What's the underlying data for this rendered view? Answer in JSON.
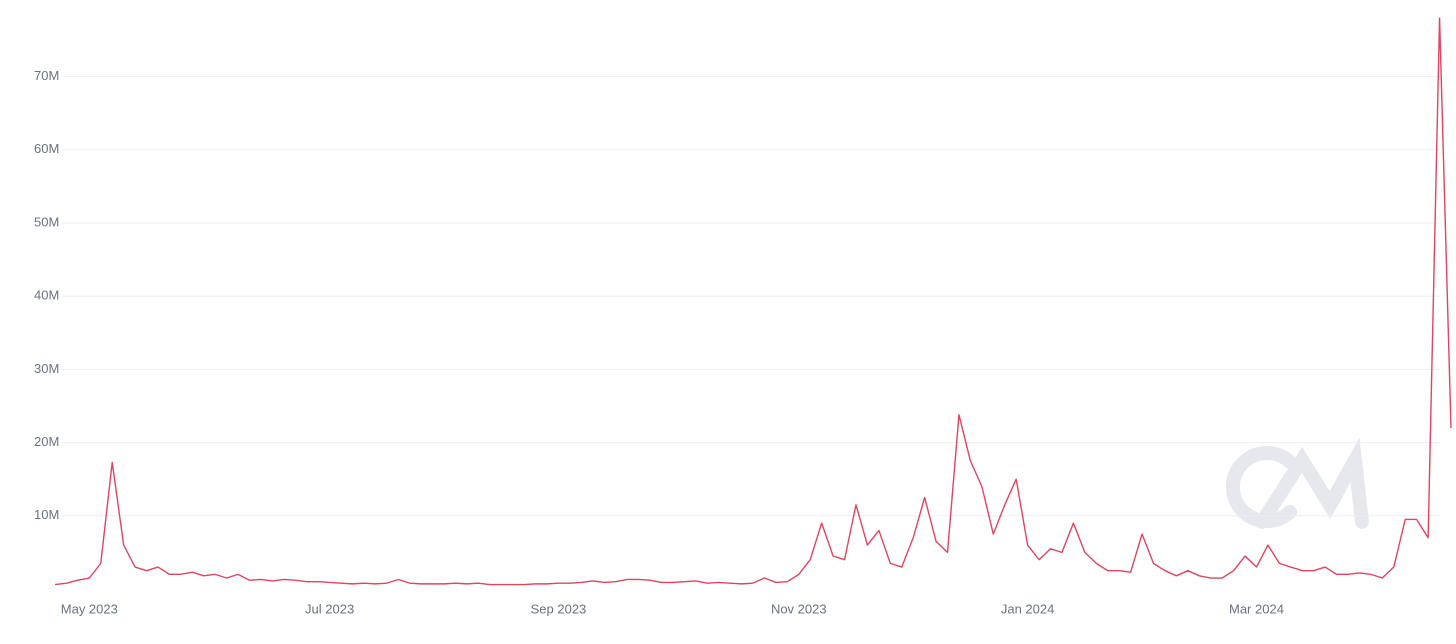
{
  "chart_data": {
    "type": "line",
    "categories": [
      null,
      null,
      null,
      "May 2023",
      null,
      null,
      null,
      null,
      null,
      null,
      null,
      null,
      null,
      null,
      null,
      null,
      null,
      null,
      null,
      null,
      null,
      null,
      null,
      null,
      "Jul 2023",
      null,
      null,
      null,
      null,
      null,
      null,
      null,
      null,
      null,
      null,
      null,
      null,
      null,
      null,
      null,
      null,
      null,
      null,
      null,
      "Sep 2023",
      null,
      null,
      null,
      null,
      null,
      null,
      null,
      null,
      null,
      null,
      null,
      null,
      null,
      null,
      null,
      null,
      null,
      null,
      null,
      null,
      "Nov 2023",
      null,
      null,
      null,
      null,
      null,
      null,
      null,
      null,
      null,
      null,
      null,
      null,
      null,
      null,
      null,
      null,
      null,
      null,
      null,
      "Jan 2024",
      null,
      null,
      null,
      null,
      null,
      null,
      null,
      null,
      null,
      null,
      null,
      null,
      null,
      null,
      null,
      null,
      null,
      null,
      null,
      "Mar 2024",
      null,
      null,
      null,
      null,
      null,
      null,
      null,
      null,
      null,
      null,
      null,
      null,
      null,
      null,
      null,
      null,
      null
    ],
    "series": [
      {
        "color": "#e0455f",
        "values": [
          0.6,
          0.8,
          1.2,
          1.5,
          3.5,
          17.3,
          6.0,
          3.0,
          2.5,
          3.0,
          2.0,
          2.0,
          2.3,
          1.8,
          2.0,
          1.5,
          2.0,
          1.2,
          1.3,
          1.1,
          1.3,
          1.2,
          1.0,
          1.0,
          0.9,
          0.8,
          0.7,
          0.8,
          0.7,
          0.8,
          1.3,
          0.8,
          0.7,
          0.7,
          0.7,
          0.8,
          0.7,
          0.8,
          0.6,
          0.6,
          0.6,
          0.6,
          0.7,
          0.7,
          0.8,
          0.8,
          0.9,
          1.1,
          0.9,
          1.0,
          1.3,
          1.3,
          1.2,
          0.9,
          0.9,
          1.0,
          1.1,
          0.8,
          0.9,
          0.8,
          0.7,
          0.8,
          1.5,
          0.9,
          1.0,
          2.0,
          4.0,
          9.0,
          4.5,
          4.0,
          11.5,
          6.0,
          8.0,
          3.5,
          3.0,
          7.0,
          12.5,
          6.5,
          5.0,
          23.8,
          17.5,
          14.0,
          7.5,
          11.5,
          15.0,
          6.0,
          4.0,
          5.5,
          5.0,
          9.0,
          5.0,
          3.5,
          2.5,
          2.5,
          2.3,
          7.5,
          3.5,
          2.5,
          1.8,
          2.5,
          1.8,
          1.5,
          1.5,
          2.5,
          4.5,
          3.0,
          6.0,
          3.5,
          3.0,
          2.5,
          2.5,
          3.0,
          2.0,
          2.0,
          2.2,
          2.0,
          1.5,
          3.0,
          9.5,
          9.5,
          7.0,
          78.0,
          22.0
        ]
      }
    ],
    "ylim": [
      0,
      80
    ],
    "yticks": [
      {
        "value": 10,
        "label": "10M"
      },
      {
        "value": 20,
        "label": "20M"
      },
      {
        "value": 30,
        "label": "30M"
      },
      {
        "value": 40,
        "label": "40M"
      },
      {
        "value": 50,
        "label": "50M"
      },
      {
        "value": 60,
        "label": "60M"
      },
      {
        "value": 70,
        "label": "70M"
      }
    ],
    "grid": true
  }
}
